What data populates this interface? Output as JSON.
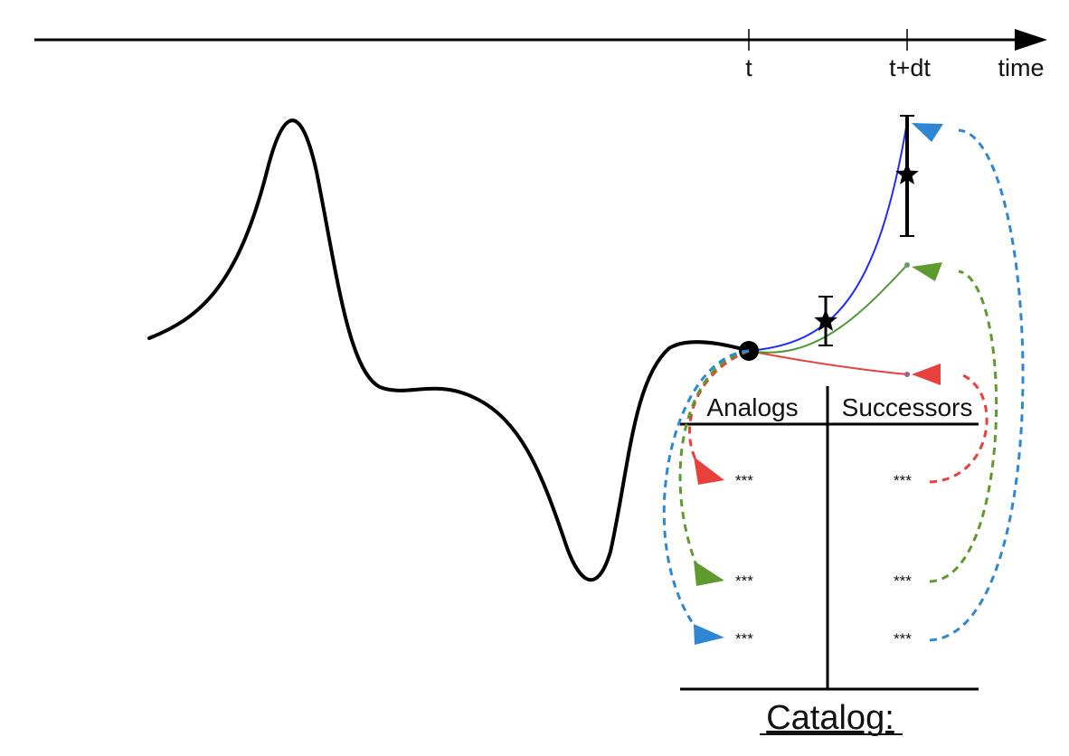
{
  "time_axis": {
    "tick_t": "t",
    "tick_t_dt": "t+dt",
    "axis_label": "time"
  },
  "catalog": {
    "title": "Catalog:",
    "analogs_header": "Analogs",
    "successors_header": "Successors",
    "rows": [
      {
        "analog": "***",
        "successor": "***",
        "color": "#e8413c"
      },
      {
        "analog": "***",
        "successor": "***",
        "color": "#5f9a2e"
      },
      {
        "analog": "***",
        "successor": "***",
        "color": "#2f86d2"
      }
    ]
  },
  "colors": {
    "trajectory": "#000000",
    "blue_forecast": "#1f2bff",
    "green_forecast": "#4a9a2e",
    "red_forecast": "#e8413c",
    "blue_link": "#2f86d2",
    "green_link": "#5f9a2e",
    "red_link": "#e8413c"
  }
}
